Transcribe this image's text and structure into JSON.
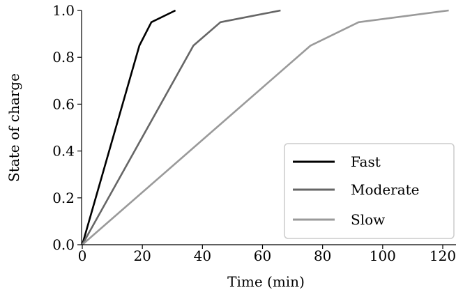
{
  "chart_data": {
    "type": "line",
    "title": "",
    "xlabel": "Time (min)",
    "ylabel": "State of charge",
    "xlim": [
      0,
      125
    ],
    "ylim": [
      0,
      1.0
    ],
    "xticks": [
      0,
      20,
      40,
      60,
      80,
      100,
      120
    ],
    "yticks": [
      0.0,
      0.2,
      0.4,
      0.6,
      0.8,
      1.0
    ],
    "xtick_labels": [
      "0",
      "20",
      "40",
      "60",
      "80",
      "100",
      "120"
    ],
    "ytick_labels": [
      "0.0",
      "0.2",
      "0.4",
      "0.6",
      "0.8",
      "1.0"
    ],
    "grid": false,
    "legend_position": "lower-right",
    "series": [
      {
        "name": "Fast",
        "color": "#000000",
        "points": [
          [
            0,
            0.0
          ],
          [
            19,
            0.85
          ],
          [
            23,
            0.95
          ],
          [
            31,
            1.0
          ]
        ]
      },
      {
        "name": "Moderate",
        "color": "#666666",
        "points": [
          [
            0,
            0.0
          ],
          [
            37,
            0.85
          ],
          [
            46,
            0.95
          ],
          [
            66,
            1.0
          ]
        ]
      },
      {
        "name": "Slow",
        "color": "#9a9a9a",
        "points": [
          [
            0,
            0.0
          ],
          [
            76,
            0.85
          ],
          [
            92,
            0.95
          ],
          [
            122,
            1.0
          ]
        ]
      }
    ]
  }
}
